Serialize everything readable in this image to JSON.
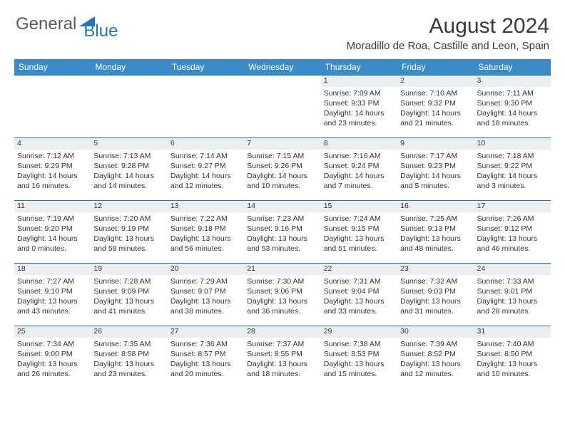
{
  "brand": {
    "word1": "General",
    "word2": "Blue"
  },
  "title": "August 2024",
  "location": "Moradillo de Roa, Castille and Leon, Spain",
  "colors": {
    "header_bg": "#3b8bc8",
    "header_text": "#ffffff",
    "daynum_bg": "#eceff1",
    "border": "#2a6ea8",
    "brand_gray": "#5a5a5a",
    "brand_blue": "#2176bd"
  },
  "weekdays": [
    "Sunday",
    "Monday",
    "Tuesday",
    "Wednesday",
    "Thursday",
    "Friday",
    "Saturday"
  ],
  "weeks": [
    [
      null,
      null,
      null,
      null,
      {
        "d": "1",
        "sr": "Sunrise: 7:09 AM",
        "ss": "Sunset: 9:33 PM",
        "dl1": "Daylight: 14 hours",
        "dl2": "and 23 minutes."
      },
      {
        "d": "2",
        "sr": "Sunrise: 7:10 AM",
        "ss": "Sunset: 9:32 PM",
        "dl1": "Daylight: 14 hours",
        "dl2": "and 21 minutes."
      },
      {
        "d": "3",
        "sr": "Sunrise: 7:11 AM",
        "ss": "Sunset: 9:30 PM",
        "dl1": "Daylight: 14 hours",
        "dl2": "and 18 minutes."
      }
    ],
    [
      {
        "d": "4",
        "sr": "Sunrise: 7:12 AM",
        "ss": "Sunset: 9:29 PM",
        "dl1": "Daylight: 14 hours",
        "dl2": "and 16 minutes."
      },
      {
        "d": "5",
        "sr": "Sunrise: 7:13 AM",
        "ss": "Sunset: 9:28 PM",
        "dl1": "Daylight: 14 hours",
        "dl2": "and 14 minutes."
      },
      {
        "d": "6",
        "sr": "Sunrise: 7:14 AM",
        "ss": "Sunset: 9:27 PM",
        "dl1": "Daylight: 14 hours",
        "dl2": "and 12 minutes."
      },
      {
        "d": "7",
        "sr": "Sunrise: 7:15 AM",
        "ss": "Sunset: 9:26 PM",
        "dl1": "Daylight: 14 hours",
        "dl2": "and 10 minutes."
      },
      {
        "d": "8",
        "sr": "Sunrise: 7:16 AM",
        "ss": "Sunset: 9:24 PM",
        "dl1": "Daylight: 14 hours",
        "dl2": "and 7 minutes."
      },
      {
        "d": "9",
        "sr": "Sunrise: 7:17 AM",
        "ss": "Sunset: 9:23 PM",
        "dl1": "Daylight: 14 hours",
        "dl2": "and 5 minutes."
      },
      {
        "d": "10",
        "sr": "Sunrise: 7:18 AM",
        "ss": "Sunset: 9:22 PM",
        "dl1": "Daylight: 14 hours",
        "dl2": "and 3 minutes."
      }
    ],
    [
      {
        "d": "11",
        "sr": "Sunrise: 7:19 AM",
        "ss": "Sunset: 9:20 PM",
        "dl1": "Daylight: 14 hours",
        "dl2": "and 0 minutes."
      },
      {
        "d": "12",
        "sr": "Sunrise: 7:20 AM",
        "ss": "Sunset: 9:19 PM",
        "dl1": "Daylight: 13 hours",
        "dl2": "and 58 minutes."
      },
      {
        "d": "13",
        "sr": "Sunrise: 7:22 AM",
        "ss": "Sunset: 9:18 PM",
        "dl1": "Daylight: 13 hours",
        "dl2": "and 56 minutes."
      },
      {
        "d": "14",
        "sr": "Sunrise: 7:23 AM",
        "ss": "Sunset: 9:16 PM",
        "dl1": "Daylight: 13 hours",
        "dl2": "and 53 minutes."
      },
      {
        "d": "15",
        "sr": "Sunrise: 7:24 AM",
        "ss": "Sunset: 9:15 PM",
        "dl1": "Daylight: 13 hours",
        "dl2": "and 51 minutes."
      },
      {
        "d": "16",
        "sr": "Sunrise: 7:25 AM",
        "ss": "Sunset: 9:13 PM",
        "dl1": "Daylight: 13 hours",
        "dl2": "and 48 minutes."
      },
      {
        "d": "17",
        "sr": "Sunrise: 7:26 AM",
        "ss": "Sunset: 9:12 PM",
        "dl1": "Daylight: 13 hours",
        "dl2": "and 46 minutes."
      }
    ],
    [
      {
        "d": "18",
        "sr": "Sunrise: 7:27 AM",
        "ss": "Sunset: 9:10 PM",
        "dl1": "Daylight: 13 hours",
        "dl2": "and 43 minutes."
      },
      {
        "d": "19",
        "sr": "Sunrise: 7:28 AM",
        "ss": "Sunset: 9:09 PM",
        "dl1": "Daylight: 13 hours",
        "dl2": "and 41 minutes."
      },
      {
        "d": "20",
        "sr": "Sunrise: 7:29 AM",
        "ss": "Sunset: 9:07 PM",
        "dl1": "Daylight: 13 hours",
        "dl2": "and 38 minutes."
      },
      {
        "d": "21",
        "sr": "Sunrise: 7:30 AM",
        "ss": "Sunset: 9:06 PM",
        "dl1": "Daylight: 13 hours",
        "dl2": "and 36 minutes."
      },
      {
        "d": "22",
        "sr": "Sunrise: 7:31 AM",
        "ss": "Sunset: 9:04 PM",
        "dl1": "Daylight: 13 hours",
        "dl2": "and 33 minutes."
      },
      {
        "d": "23",
        "sr": "Sunrise: 7:32 AM",
        "ss": "Sunset: 9:03 PM",
        "dl1": "Daylight: 13 hours",
        "dl2": "and 31 minutes."
      },
      {
        "d": "24",
        "sr": "Sunrise: 7:33 AM",
        "ss": "Sunset: 9:01 PM",
        "dl1": "Daylight: 13 hours",
        "dl2": "and 28 minutes."
      }
    ],
    [
      {
        "d": "25",
        "sr": "Sunrise: 7:34 AM",
        "ss": "Sunset: 9:00 PM",
        "dl1": "Daylight: 13 hours",
        "dl2": "and 26 minutes."
      },
      {
        "d": "26",
        "sr": "Sunrise: 7:35 AM",
        "ss": "Sunset: 8:58 PM",
        "dl1": "Daylight: 13 hours",
        "dl2": "and 23 minutes."
      },
      {
        "d": "27",
        "sr": "Sunrise: 7:36 AM",
        "ss": "Sunset: 8:57 PM",
        "dl1": "Daylight: 13 hours",
        "dl2": "and 20 minutes."
      },
      {
        "d": "28",
        "sr": "Sunrise: 7:37 AM",
        "ss": "Sunset: 8:55 PM",
        "dl1": "Daylight: 13 hours",
        "dl2": "and 18 minutes."
      },
      {
        "d": "29",
        "sr": "Sunrise: 7:38 AM",
        "ss": "Sunset: 8:53 PM",
        "dl1": "Daylight: 13 hours",
        "dl2": "and 15 minutes."
      },
      {
        "d": "30",
        "sr": "Sunrise: 7:39 AM",
        "ss": "Sunset: 8:52 PM",
        "dl1": "Daylight: 13 hours",
        "dl2": "and 12 minutes."
      },
      {
        "d": "31",
        "sr": "Sunrise: 7:40 AM",
        "ss": "Sunset: 8:50 PM",
        "dl1": "Daylight: 13 hours",
        "dl2": "and 10 minutes."
      }
    ]
  ]
}
